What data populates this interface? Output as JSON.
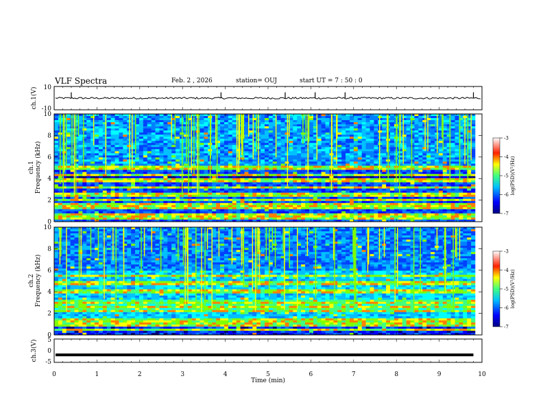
{
  "header": {
    "title": "VLF Spectra",
    "date": "Feb. 2 , 2026",
    "station": "station= OUJ",
    "start": "start UT = 7 : 50 : 0"
  },
  "colors": {
    "colormap": [
      "#000080",
      "#0000ff",
      "#0040ff",
      "#0080ff",
      "#00c0ff",
      "#00ffff",
      "#40ff80",
      "#80ff00",
      "#ffff00",
      "#ff8000",
      "#ff0000",
      "#ffffff"
    ],
    "waveform": "#000000"
  },
  "chart_data": [
    {
      "type": "line",
      "name": "ch1-waveform",
      "ylabel": "ch.1(V)",
      "ylim": [
        -10,
        10
      ],
      "yticks": [
        "10",
        "-10"
      ],
      "baseline_value": 0,
      "xlim": [
        0,
        10
      ],
      "note": "noisy waveform centered near 0 V with sparse spikes"
    },
    {
      "type": "heatmap",
      "name": "ch1-spectrogram",
      "ylabel": "ch.1\nFrequency (kHz)",
      "ylabel_lines": [
        "ch.1",
        "Frequency (kHz)"
      ],
      "ylim": [
        0,
        10
      ],
      "yticks": [
        "0",
        "2",
        "4",
        "6",
        "8",
        "10"
      ],
      "xlim": [
        0,
        10
      ],
      "colorbar": {
        "label": "log(PSD)(V²/Hz)",
        "ticks": [
          "-3",
          "-4",
          "-5",
          "-6",
          "-7"
        ],
        "range": [
          -7,
          -3
        ]
      },
      "bands_khz": [
        0.3,
        0.6,
        1.3,
        1.6,
        2.0,
        2.5,
        3.2,
        3.8,
        4.3,
        5.0
      ],
      "quiet_band_khz": [
        3.8,
        4.3
      ]
    },
    {
      "type": "heatmap",
      "name": "ch2-spectrogram",
      "ylabel": "ch.2\nFrequency (kHz)",
      "ylabel_lines": [
        "ch.2",
        "Frequency (kHz)"
      ],
      "ylim": [
        0,
        10
      ],
      "yticks": [
        "0",
        "2",
        "4",
        "6",
        "8",
        "10"
      ],
      "xlim": [
        0,
        10
      ],
      "colorbar": {
        "label": "log(PSD)(V²/Hz)",
        "ticks": [
          "-3",
          "-4",
          "-5",
          "-6",
          "-7"
        ],
        "range": [
          -7,
          -3
        ]
      },
      "bands_khz": [
        0.5,
        1.0,
        1.3,
        2.2,
        2.6,
        3.0,
        4.0,
        4.8,
        5.5
      ],
      "active_band_khz": [
        2.2,
        3.2
      ]
    },
    {
      "type": "line",
      "name": "ch3-waveform",
      "ylabel": "ch.3(V)",
      "ylim": [
        -5,
        5
      ],
      "yticks": [
        "5",
        "0",
        "-5"
      ],
      "baseline_value": -1.8,
      "xlim": [
        0,
        10
      ],
      "xlabel": "Time (min)",
      "xticks": [
        "0",
        "1",
        "2",
        "3",
        "4",
        "5",
        "6",
        "7",
        "8",
        "9",
        "10"
      ]
    }
  ]
}
